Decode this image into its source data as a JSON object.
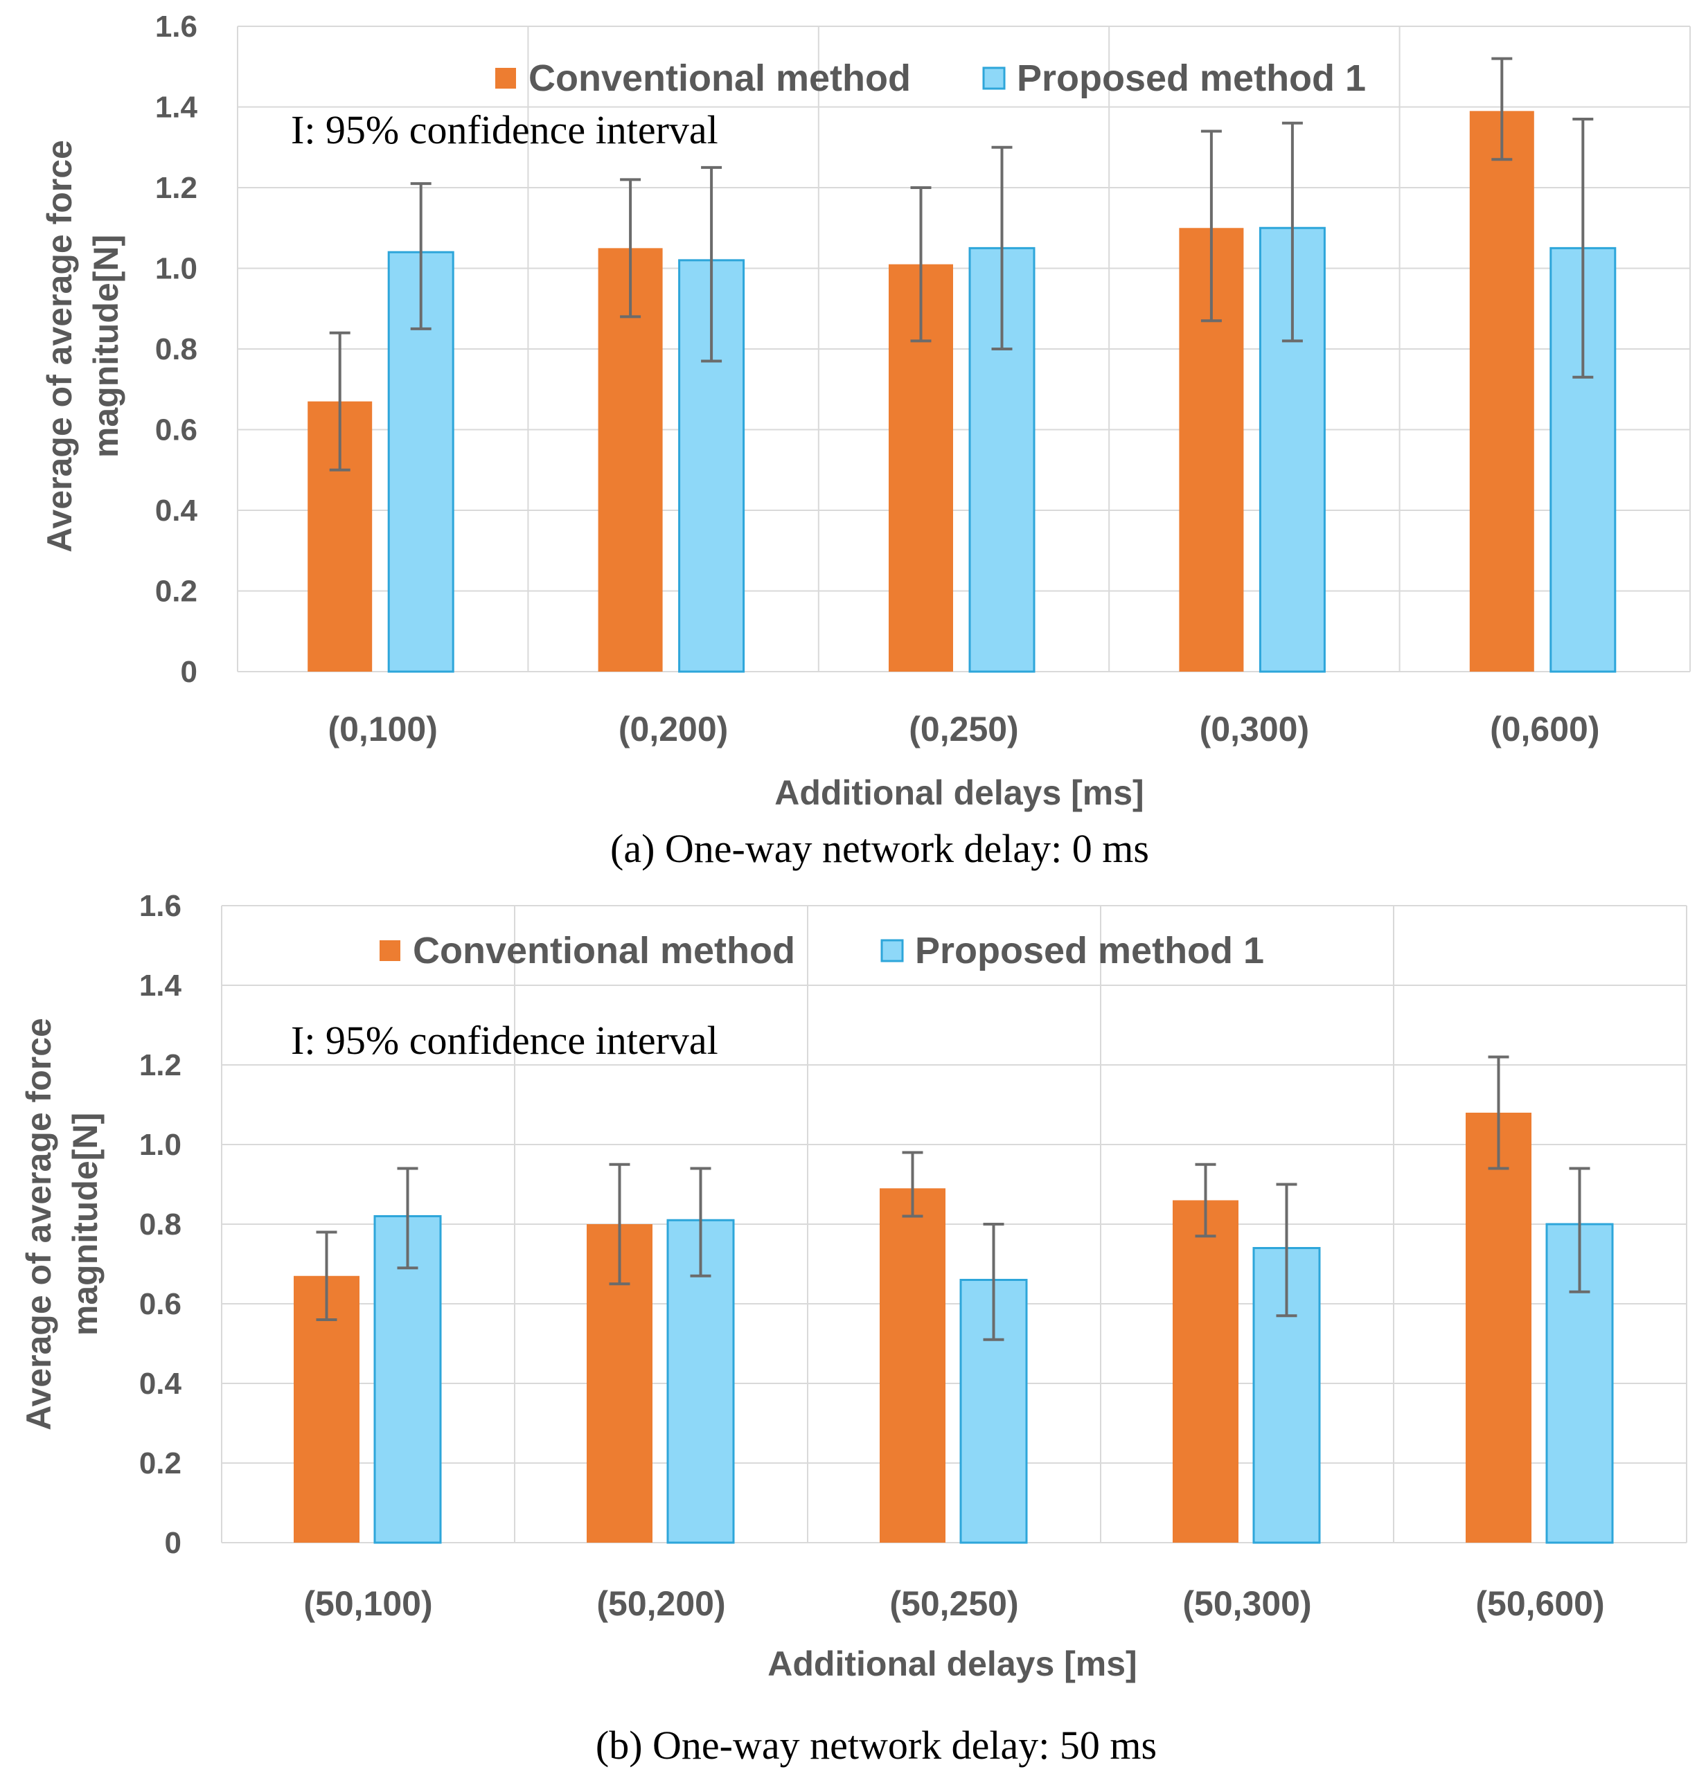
{
  "chart_data": [
    {
      "type": "bar",
      "caption": "(a) One-way network delay: 0 ms",
      "note": "I: 95% confidence interval",
      "xlabel": "Additional delays [ms]",
      "ylabel_line1": "Average of average force",
      "ylabel_line2": "magnitude[N]",
      "ylim": [
        0,
        1.6
      ],
      "yticks": [
        "0",
        "0.2",
        "0.4",
        "0.6",
        "0.8",
        "1.0",
        "1.2",
        "1.4",
        "1.6"
      ],
      "categories": [
        "(0,100)",
        "(0,200)",
        "(0,250)",
        "(0,300)",
        "(0,600)"
      ],
      "series": [
        {
          "name": "Conventional method",
          "color": "#ED7D31",
          "values": [
            0.67,
            1.05,
            1.01,
            1.1,
            1.39
          ],
          "ci_low": [
            0.5,
            0.88,
            0.82,
            0.87,
            1.27
          ],
          "ci_high": [
            0.84,
            1.22,
            1.2,
            1.34,
            1.52
          ]
        },
        {
          "name": "Proposed method 1",
          "color": "#8ED8F8",
          "border": "#2EA6DA",
          "values": [
            1.04,
            1.02,
            1.05,
            1.1,
            1.05
          ],
          "ci_low": [
            0.85,
            0.77,
            0.8,
            0.82,
            0.73
          ],
          "ci_high": [
            1.21,
            1.25,
            1.3,
            1.36,
            1.37
          ]
        }
      ]
    },
    {
      "type": "bar",
      "caption": "(b) One-way network delay: 50 ms",
      "note": "I: 95% confidence interval",
      "xlabel": "Additional delays  [ms]",
      "ylabel_line1": "Average of average force",
      "ylabel_line2": "magnitude[N]",
      "ylim": [
        0,
        1.6
      ],
      "yticks": [
        "0",
        "0.2",
        "0.4",
        "0.6",
        "0.8",
        "1.0",
        "1.2",
        "1.4",
        "1.6"
      ],
      "categories": [
        "(50,100)",
        "(50,200)",
        "(50,250)",
        "(50,300)",
        "(50,600)"
      ],
      "series": [
        {
          "name": "Conventional method",
          "color": "#ED7D31",
          "values": [
            0.67,
            0.8,
            0.89,
            0.86,
            1.08
          ],
          "ci_low": [
            0.56,
            0.65,
            0.82,
            0.77,
            0.94
          ],
          "ci_high": [
            0.78,
            0.95,
            0.98,
            0.95,
            1.22
          ]
        },
        {
          "name": "Proposed method 1",
          "color": "#8ED8F8",
          "border": "#2EA6DA",
          "values": [
            0.82,
            0.81,
            0.66,
            0.74,
            0.8
          ],
          "ci_low": [
            0.69,
            0.67,
            0.51,
            0.57,
            0.63
          ],
          "ci_high": [
            0.94,
            0.94,
            0.8,
            0.9,
            0.94
          ]
        }
      ]
    }
  ]
}
